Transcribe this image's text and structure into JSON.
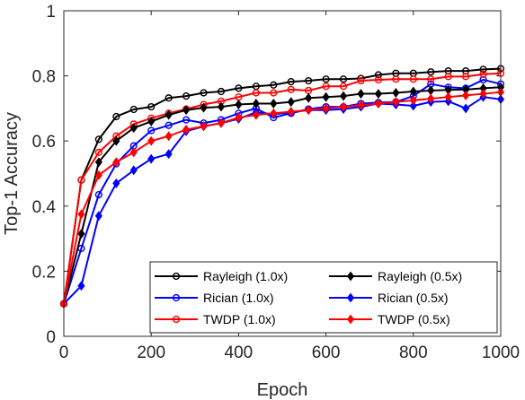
{
  "chart_data": {
    "type": "line",
    "title": "",
    "xlabel": "Epoch",
    "ylabel": "Top-1 Accuracy",
    "xlim": [
      0,
      1000
    ],
    "ylim": [
      0,
      1
    ],
    "xticks": [
      "0",
      "200",
      "400",
      "600",
      "800",
      "1000"
    ],
    "yticks": [
      "0",
      "0.2",
      "0.4",
      "0.6",
      "0.8",
      "1"
    ],
    "grid": false,
    "legend_position": "bottom-right",
    "x": [
      0,
      40,
      80,
      120,
      160,
      200,
      240,
      280,
      320,
      360,
      400,
      440,
      480,
      520,
      560,
      600,
      640,
      680,
      720,
      760,
      800,
      840,
      880,
      920,
      960,
      1000
    ],
    "series": [
      {
        "name": "Rayleigh (1.0x)",
        "color": "#000000",
        "marker": "circle",
        "values": [
          0.1,
          0.48,
          0.605,
          0.675,
          0.697,
          0.705,
          0.732,
          0.738,
          0.748,
          0.752,
          0.762,
          0.768,
          0.772,
          0.782,
          0.785,
          0.79,
          0.79,
          0.792,
          0.803,
          0.808,
          0.808,
          0.812,
          0.815,
          0.815,
          0.82,
          0.822
        ]
      },
      {
        "name": "Rician (1.0x)",
        "color": "#0000ff",
        "marker": "circle",
        "values": [
          0.1,
          0.27,
          0.435,
          0.53,
          0.585,
          0.632,
          0.648,
          0.665,
          0.655,
          0.665,
          0.685,
          0.7,
          0.672,
          0.685,
          0.698,
          0.705,
          0.705,
          0.715,
          0.718,
          0.72,
          0.738,
          0.775,
          0.765,
          0.762,
          0.788,
          0.775
        ]
      },
      {
        "name": "TWDP (1.0x)",
        "color": "#ff0000",
        "marker": "circle",
        "values": [
          0.1,
          0.48,
          0.565,
          0.615,
          0.652,
          0.67,
          0.685,
          0.698,
          0.712,
          0.722,
          0.735,
          0.748,
          0.748,
          0.758,
          0.755,
          0.768,
          0.768,
          0.785,
          0.788,
          0.79,
          0.79,
          0.79,
          0.798,
          0.798,
          0.805,
          0.808
        ]
      },
      {
        "name": "Rayleigh (0.5x)",
        "color": "#000000",
        "marker": "diamond",
        "values": [
          0.1,
          0.315,
          0.535,
          0.6,
          0.64,
          0.66,
          0.68,
          0.695,
          0.702,
          0.705,
          0.712,
          0.715,
          0.715,
          0.72,
          0.732,
          0.735,
          0.738,
          0.745,
          0.745,
          0.748,
          0.752,
          0.755,
          0.757,
          0.758,
          0.762,
          0.765
        ]
      },
      {
        "name": "Rician (0.5x)",
        "color": "#0000ff",
        "marker": "diamond",
        "values": [
          0.1,
          0.155,
          0.37,
          0.47,
          0.51,
          0.545,
          0.56,
          0.63,
          0.645,
          0.655,
          0.668,
          0.688,
          0.682,
          0.688,
          0.695,
          0.695,
          0.698,
          0.705,
          0.715,
          0.712,
          0.708,
          0.72,
          0.722,
          0.7,
          0.735,
          0.728
        ]
      },
      {
        "name": "TWDP (0.5x)",
        "color": "#ff0000",
        "marker": "diamond",
        "values": [
          0.1,
          0.375,
          0.495,
          0.535,
          0.565,
          0.6,
          0.615,
          0.635,
          0.645,
          0.655,
          0.672,
          0.68,
          0.685,
          0.69,
          0.695,
          0.7,
          0.705,
          0.71,
          0.715,
          0.72,
          0.725,
          0.73,
          0.735,
          0.74,
          0.745,
          0.75
        ]
      }
    ]
  }
}
